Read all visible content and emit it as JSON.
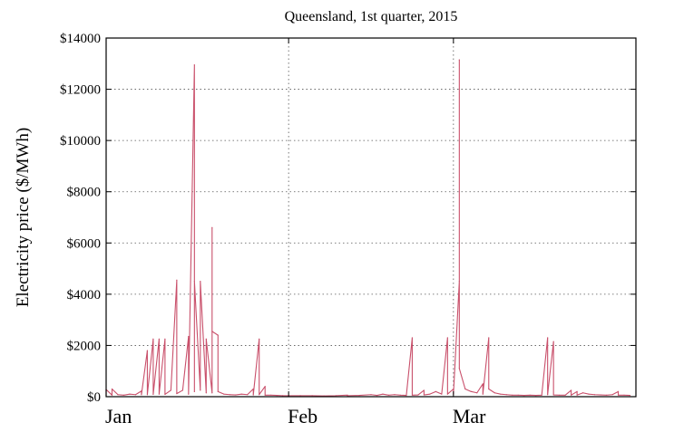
{
  "chart_data": {
    "type": "line",
    "title": "Queensland, 1st quarter, 2015",
    "xlabel": "",
    "ylabel": "Electricity price ($/MWh)",
    "xlim": [
      "2015-01-01",
      "2015-03-31"
    ],
    "ylim": [
      0,
      14000
    ],
    "y_ticks": [
      0,
      2000,
      4000,
      6000,
      8000,
      10000,
      12000,
      14000
    ],
    "y_tick_labels": [
      "$0",
      "$2000",
      "$4000",
      "$6000",
      "$8000",
      "$10000",
      "$12000",
      "$14000"
    ],
    "x_ticks": [
      "2015-01-01",
      "2015-02-01",
      "2015-03-01"
    ],
    "x_tick_labels": [
      "Jan",
      "Feb",
      "Mar"
    ],
    "grid": "dotted, at x ticks and y ticks",
    "series": [
      {
        "color": "#c9506b",
        "points": [
          [
            "2015-01-01",
            60
          ],
          [
            "2015-01-01",
            280
          ],
          [
            "2015-01-02",
            60
          ],
          [
            "2015-01-02",
            300
          ],
          [
            "2015-01-03",
            80
          ],
          [
            "2015-01-04",
            60
          ],
          [
            "2015-01-05",
            100
          ],
          [
            "2015-01-06",
            80
          ],
          [
            "2015-01-07",
            220
          ],
          [
            "2015-01-07",
            80
          ],
          [
            "2015-01-08",
            1800
          ],
          [
            "2015-01-08",
            80
          ],
          [
            "2015-01-09",
            2250
          ],
          [
            "2015-01-09",
            90
          ],
          [
            "2015-01-10",
            2250
          ],
          [
            "2015-01-10",
            100
          ],
          [
            "2015-01-11",
            2250
          ],
          [
            "2015-01-11",
            90
          ],
          [
            "2015-01-12",
            250
          ],
          [
            "2015-01-13",
            4550
          ],
          [
            "2015-01-13",
            120
          ],
          [
            "2015-01-14",
            250
          ],
          [
            "2015-01-15",
            2350
          ],
          [
            "2015-01-15",
            100
          ],
          [
            "2015-01-16",
            12950
          ],
          [
            "2015-01-16",
            200
          ],
          [
            "2015-01-16",
            4500
          ],
          [
            "2015-01-17",
            250
          ],
          [
            "2015-01-17",
            4500
          ],
          [
            "2015-01-18",
            150
          ],
          [
            "2015-01-18",
            2250
          ],
          [
            "2015-01-19",
            150
          ],
          [
            "2015-01-19",
            6600
          ],
          [
            "2015-01-19",
            2550
          ],
          [
            "2015-01-20",
            2400
          ],
          [
            "2015-01-20",
            200
          ],
          [
            "2015-01-21",
            100
          ],
          [
            "2015-01-22",
            80
          ],
          [
            "2015-01-23",
            70
          ],
          [
            "2015-01-24",
            100
          ],
          [
            "2015-01-25",
            80
          ],
          [
            "2015-01-26",
            300
          ],
          [
            "2015-01-26",
            70
          ],
          [
            "2015-01-27",
            2250
          ],
          [
            "2015-01-27",
            80
          ],
          [
            "2015-01-28",
            400
          ],
          [
            "2015-01-28",
            60
          ],
          [
            "2015-01-29",
            60
          ],
          [
            "2015-01-30",
            50
          ],
          [
            "2015-01-31",
            40
          ],
          [
            "2015-02-01",
            40
          ],
          [
            "2015-02-03",
            40
          ],
          [
            "2015-02-05",
            40
          ],
          [
            "2015-02-07",
            30
          ],
          [
            "2015-02-09",
            40
          ],
          [
            "2015-02-11",
            60
          ],
          [
            "2015-02-11",
            40
          ],
          [
            "2015-02-13",
            50
          ],
          [
            "2015-02-15",
            80
          ],
          [
            "2015-02-16",
            50
          ],
          [
            "2015-02-17",
            100
          ],
          [
            "2015-02-18",
            60
          ],
          [
            "2015-02-19",
            80
          ],
          [
            "2015-02-20",
            60
          ],
          [
            "2015-02-21",
            50
          ],
          [
            "2015-02-22",
            2300
          ],
          [
            "2015-02-22",
            60
          ],
          [
            "2015-02-23",
            70
          ],
          [
            "2015-02-24",
            250
          ],
          [
            "2015-02-24",
            70
          ],
          [
            "2015-02-25",
            100
          ],
          [
            "2015-02-26",
            200
          ],
          [
            "2015-02-27",
            100
          ],
          [
            "2015-02-28",
            2300
          ],
          [
            "2015-02-28",
            100
          ],
          [
            "2015-03-01",
            300
          ],
          [
            "2015-03-01",
            100
          ],
          [
            "2015-03-02",
            4500
          ],
          [
            "2015-03-02",
            13150
          ],
          [
            "2015-03-02",
            1100
          ],
          [
            "2015-03-03",
            300
          ],
          [
            "2015-03-04",
            200
          ],
          [
            "2015-03-05",
            150
          ],
          [
            "2015-03-06",
            500
          ],
          [
            "2015-03-06",
            100
          ],
          [
            "2015-03-07",
            2300
          ],
          [
            "2015-03-07",
            300
          ],
          [
            "2015-03-08",
            150
          ],
          [
            "2015-03-09",
            100
          ],
          [
            "2015-03-10",
            80
          ],
          [
            "2015-03-11",
            60
          ],
          [
            "2015-03-12",
            60
          ],
          [
            "2015-03-13",
            50
          ],
          [
            "2015-03-14",
            60
          ],
          [
            "2015-03-15",
            50
          ],
          [
            "2015-03-16",
            60
          ],
          [
            "2015-03-17",
            2300
          ],
          [
            "2015-03-17",
            80
          ],
          [
            "2015-03-18",
            2150
          ],
          [
            "2015-03-18",
            70
          ],
          [
            "2015-03-19",
            60
          ],
          [
            "2015-03-20",
            60
          ],
          [
            "2015-03-21",
            250
          ],
          [
            "2015-03-21",
            60
          ],
          [
            "2015-03-22",
            200
          ],
          [
            "2015-03-22",
            60
          ],
          [
            "2015-03-23",
            150
          ],
          [
            "2015-03-24",
            100
          ],
          [
            "2015-03-25",
            80
          ],
          [
            "2015-03-26",
            70
          ],
          [
            "2015-03-27",
            60
          ],
          [
            "2015-03-28",
            80
          ],
          [
            "2015-03-29",
            200
          ],
          [
            "2015-03-29",
            60
          ],
          [
            "2015-03-30",
            60
          ],
          [
            "2015-03-31",
            50
          ]
        ]
      }
    ]
  }
}
